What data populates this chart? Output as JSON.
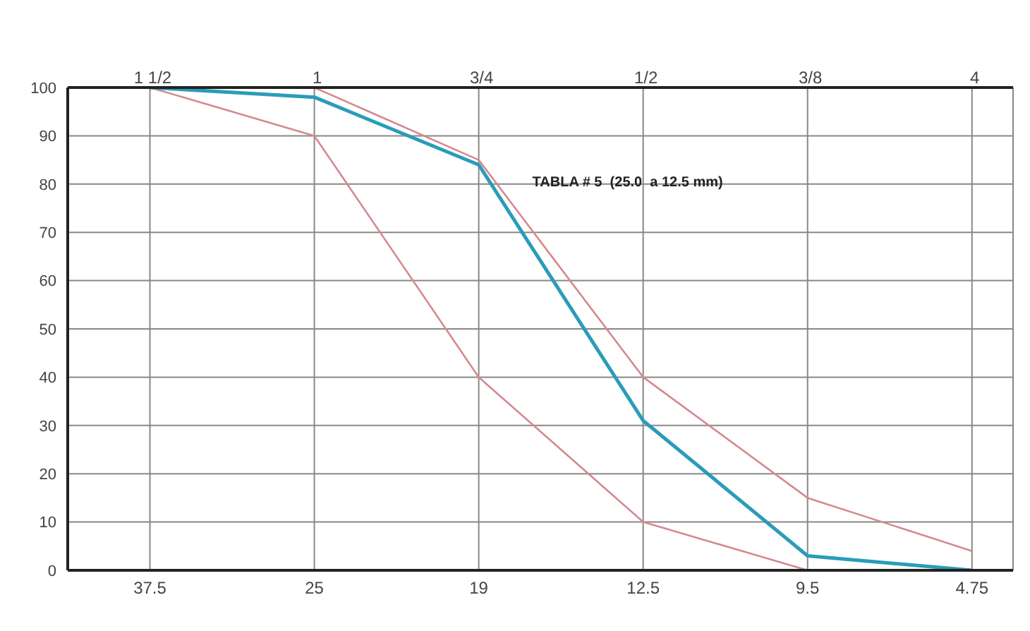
{
  "chart_data": {
    "type": "line",
    "categories": [
      "37.5",
      "25",
      "19",
      "12.5",
      "9.5",
      "4.75"
    ],
    "series": [
      {
        "color": "#d48a8f",
        "values": [
          100,
          100,
          85,
          40,
          15,
          4
        ]
      },
      {
        "color": "#d48a8f",
        "values": [
          100,
          90,
          40,
          10,
          0,
          null
        ]
      },
      {
        "color": "#2a9cb8",
        "values": [
          100,
          98,
          84,
          31,
          3,
          0
        ]
      }
    ],
    "ylim": [
      0,
      100
    ],
    "yticks": [
      0,
      10,
      20,
      30,
      40,
      50,
      60,
      70,
      80,
      90,
      100
    ],
    "annotations": [
      "1 1/2",
      "1",
      "3/4",
      "1/2",
      "3/8",
      "4",
      "TABLA # 5  (25.0  a 12.5 mm)"
    ],
    "grid": true,
    "marker": "none",
    "line_style": "solid"
  }
}
